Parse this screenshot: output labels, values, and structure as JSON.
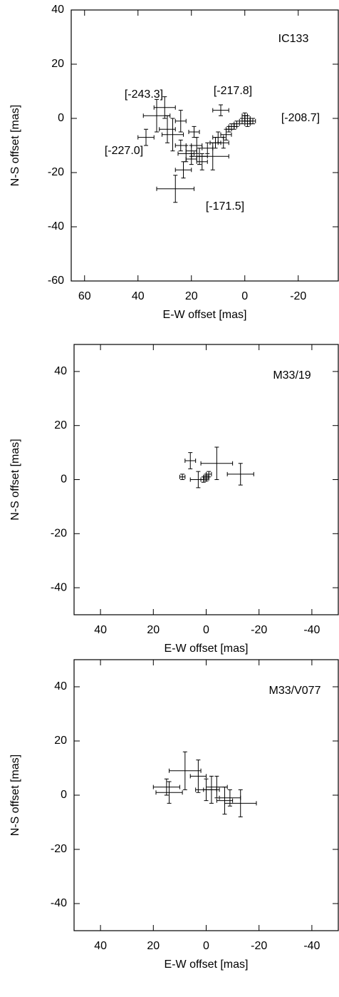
{
  "chart_data": [
    {
      "type": "scatter",
      "title": "IC133",
      "x_label": "E-W offset [mas]",
      "y_label": "N-S offset [mas]",
      "color": "#000000",
      "xlim": [
        65,
        -35
      ],
      "ylim": [
        -60,
        40
      ],
      "xticks": [
        60,
        40,
        20,
        0,
        -20
      ],
      "yticks": [
        -60,
        -40,
        -20,
        0,
        20,
        40
      ],
      "annotations": [
        "[-243.3]",
        "[-217.8]",
        "[-208.7]",
        "[-227.0]",
        "[-171.5]"
      ],
      "series": [
        {
          "x": [
            30,
            33,
            29,
            27,
            24,
            37,
            24,
            26,
            23,
            22,
            20,
            19,
            18,
            17,
            16,
            12,
            11,
            8,
            9,
            7,
            6,
            5,
            4,
            3,
            1,
            0,
            0,
            -1,
            -2,
            -3,
            -1,
            10,
            14,
            20
          ],
          "values": [
            4,
            1,
            -4,
            -6,
            -1,
            -7,
            -10,
            -26,
            -19,
            -13,
            -12,
            -5,
            -10,
            -14,
            -16,
            -14,
            -9,
            -9,
            3,
            -6,
            -4,
            -3,
            -3,
            -2,
            -1,
            0,
            1,
            0,
            -1,
            -1,
            -2,
            -7,
            -11,
            -15
          ],
          "x_errors": [
            4,
            5,
            3,
            4,
            2,
            3,
            2,
            7,
            3,
            3,
            2,
            2,
            2,
            3,
            2,
            6,
            2,
            2,
            3,
            2,
            1,
            1,
            1,
            1,
            1,
            1,
            1,
            1,
            1,
            1,
            1,
            2,
            2,
            2
          ],
          "y_errors": [
            4,
            6,
            5,
            6,
            4,
            3,
            2,
            5,
            3,
            3,
            2,
            2,
            3,
            3,
            3,
            5,
            2,
            2,
            2,
            2,
            1,
            1,
            1,
            1,
            1,
            1,
            1,
            1,
            1,
            1,
            1,
            2,
            2,
            2
          ]
        }
      ]
    },
    {
      "type": "scatter",
      "title": "M33/19",
      "x_label": "E-W offset [mas]",
      "y_label": "N-S offset [mas]",
      "color": "#000000",
      "xlim": [
        50,
        -50
      ],
      "ylim": [
        -50,
        50
      ],
      "xticks": [
        40,
        20,
        0,
        -20,
        -40
      ],
      "yticks": [
        -40,
        -20,
        0,
        20,
        40
      ],
      "series": [
        {
          "x": [
            9,
            6,
            3,
            0,
            1,
            -1,
            -4,
            -13,
            0
          ],
          "values": [
            1,
            7,
            0,
            1,
            0,
            2,
            6,
            2,
            0.5
          ],
          "x_errors": [
            1,
            2,
            3,
            1,
            1,
            1,
            6,
            5,
            1
          ],
          "y_errors": [
            1,
            3,
            3,
            1,
            1,
            1,
            6,
            4,
            1
          ]
        }
      ]
    },
    {
      "type": "scatter",
      "title": "M33/V077",
      "x_label": "E-W offset [mas]",
      "y_label": "N-S offset [mas]",
      "color": "#000000",
      "xlim": [
        50,
        -50
      ],
      "ylim": [
        -50,
        50
      ],
      "xticks": [
        40,
        20,
        0,
        -20,
        -40
      ],
      "yticks": [
        -40,
        -20,
        0,
        20,
        40
      ],
      "series": [
        {
          "x": [
            15,
            14,
            8,
            3,
            0,
            -2,
            -4,
            -7,
            -9,
            -13
          ],
          "values": [
            3,
            1,
            9,
            7,
            2,
            2,
            3,
            -2,
            -1,
            -3
          ],
          "x_errors": [
            5,
            5,
            6,
            3,
            4,
            3,
            4,
            3,
            4,
            6
          ],
          "y_errors": [
            3,
            4,
            7,
            6,
            4,
            5,
            4,
            5,
            3,
            5
          ]
        }
      ]
    }
  ]
}
